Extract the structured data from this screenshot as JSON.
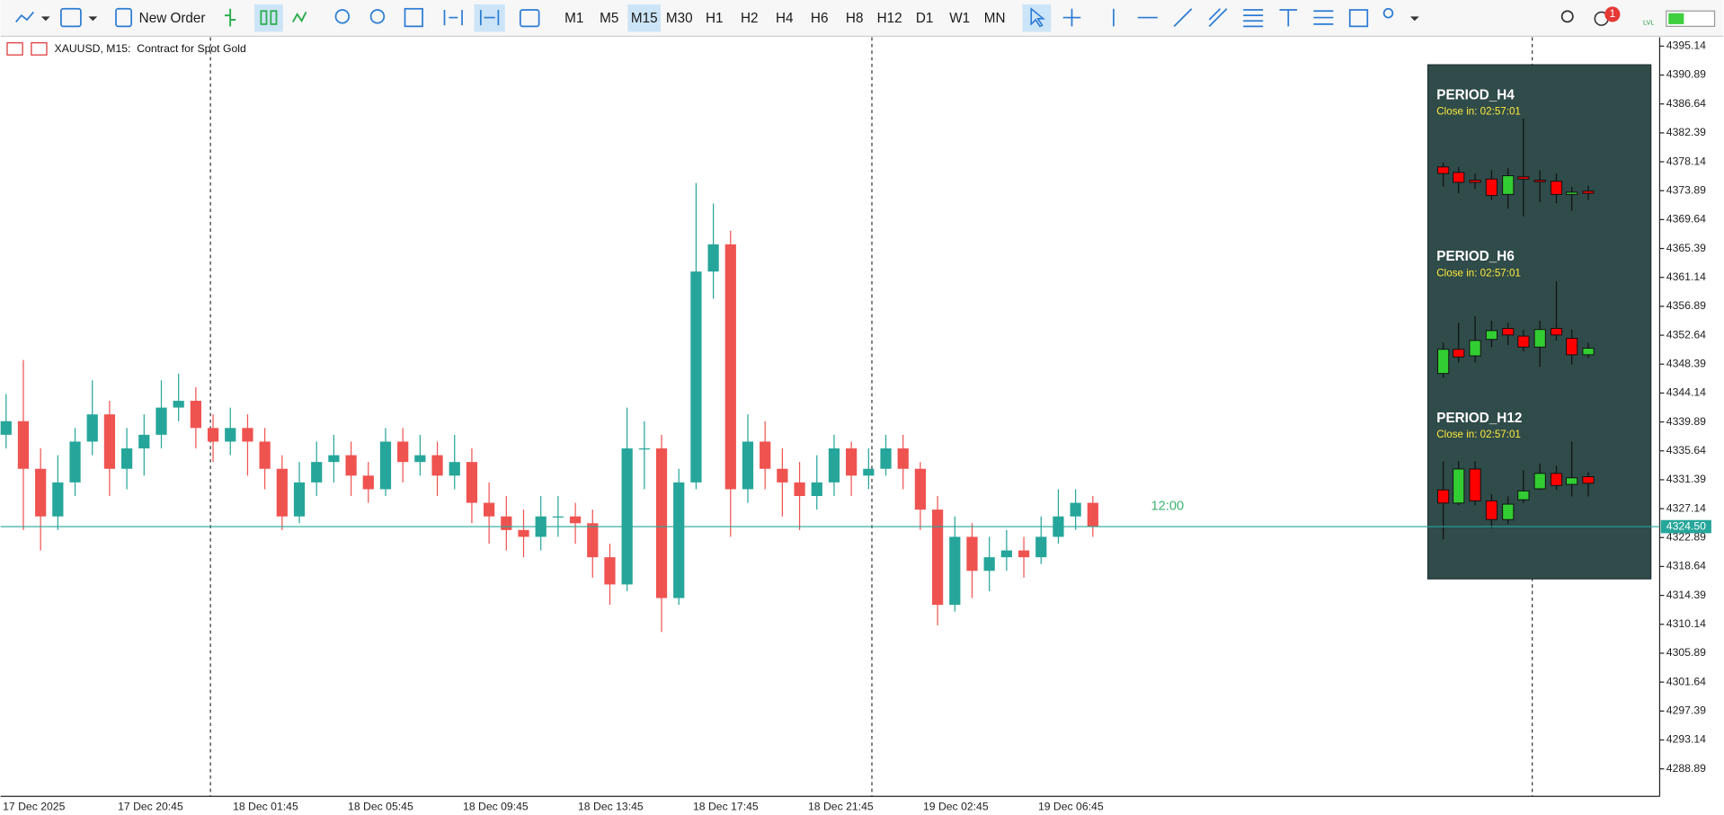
{
  "toolbar": {
    "new_order": "New Order",
    "timeframes": [
      "M1",
      "M5",
      "M15",
      "M30",
      "H1",
      "H2",
      "H4",
      "H6",
      "H8",
      "H12",
      "D1",
      "W1",
      "MN"
    ],
    "active_timeframe": "M15",
    "notifications": "1",
    "lvl": "LVL"
  },
  "chart_data": {
    "type": "candlestick",
    "title": "XAUUSD, M15:  Contract for Spot Gold",
    "x_labels": [
      "17 Dec 2025",
      "17 Dec 20:45",
      "18 Dec 01:45",
      "18 Dec 05:45",
      "18 Dec 09:45",
      "18 Dec 13:45",
      "18 Dec 17:45",
      "18 Dec 21:45",
      "19 Dec 02:45",
      "19 Dec 06:45"
    ],
    "candles": [
      [
        4338,
        4344,
        4336,
        4340
      ],
      [
        4340,
        4349,
        4324,
        4333
      ],
      [
        4333,
        4336,
        4321,
        4326
      ],
      [
        4326,
        4335,
        4324,
        4331
      ],
      [
        4331,
        4339,
        4329,
        4337
      ],
      [
        4337,
        4346,
        4335,
        4341
      ],
      [
        4341,
        4343,
        4329,
        4333
      ],
      [
        4333,
        4339,
        4330,
        4336
      ],
      [
        4336,
        4341,
        4332,
        4338
      ],
      [
        4338,
        4346,
        4336,
        4342
      ],
      [
        4342,
        4347,
        4340,
        4343
      ],
      [
        4343,
        4345,
        4336,
        4339
      ],
      [
        4339,
        4341,
        4334,
        4337
      ],
      [
        4337,
        4342,
        4335,
        4339
      ],
      [
        4339,
        4341,
        4332,
        4337
      ],
      [
        4337,
        4339,
        4330,
        4333
      ],
      [
        4333,
        4335,
        4324,
        4326
      ],
      [
        4326,
        4334,
        4325,
        4331
      ],
      [
        4331,
        4337,
        4329,
        4334
      ],
      [
        4334,
        4338,
        4331,
        4335
      ],
      [
        4335,
        4337,
        4329,
        4332
      ],
      [
        4332,
        4334,
        4328,
        4330
      ],
      [
        4330,
        4339,
        4329,
        4337
      ],
      [
        4337,
        4339,
        4331,
        4334
      ],
      [
        4334,
        4338,
        4332,
        4335
      ],
      [
        4335,
        4337,
        4329,
        4332
      ],
      [
        4332,
        4338,
        4330,
        4334
      ],
      [
        4334,
        4336,
        4325,
        4328
      ],
      [
        4328,
        4331,
        4322,
        4326
      ],
      [
        4326,
        4329,
        4321,
        4324
      ],
      [
        4324,
        4327,
        4320,
        4323
      ],
      [
        4323,
        4329,
        4321,
        4326
      ],
      [
        4326,
        4329,
        4323,
        4326
      ],
      [
        4326,
        4328,
        4322,
        4325
      ],
      [
        4325,
        4327,
        4317,
        4320
      ],
      [
        4320,
        4322,
        4313,
        4316
      ],
      [
        4316,
        4342,
        4315,
        4336
      ],
      [
        4336,
        4340,
        4330,
        4336
      ],
      [
        4336,
        4338,
        4309,
        4314
      ],
      [
        4314,
        4333,
        4313,
        4331
      ],
      [
        4331,
        4375,
        4330,
        4362
      ],
      [
        4362,
        4372,
        4358,
        4366
      ],
      [
        4366,
        4368,
        4323,
        4330
      ],
      [
        4330,
        4341,
        4328,
        4337
      ],
      [
        4337,
        4340,
        4330,
        4333
      ],
      [
        4333,
        4336,
        4326,
        4331
      ],
      [
        4331,
        4334,
        4324,
        4329
      ],
      [
        4329,
        4335,
        4327,
        4331
      ],
      [
        4331,
        4338,
        4329,
        4336
      ],
      [
        4336,
        4337,
        4329,
        4332
      ],
      [
        4332,
        4336,
        4330,
        4333
      ],
      [
        4333,
        4338,
        4332,
        4336
      ],
      [
        4336,
        4338,
        4330,
        4333
      ],
      [
        4333,
        4334,
        4324,
        4327
      ],
      [
        4327,
        4329,
        4310,
        4313
      ],
      [
        4313,
        4326,
        4312,
        4323
      ],
      [
        4323,
        4325,
        4314,
        4318
      ],
      [
        4318,
        4323,
        4315,
        4320
      ],
      [
        4320,
        4324,
        4318,
        4321
      ],
      [
        4321,
        4323,
        4317,
        4320
      ],
      [
        4320,
        4326,
        4319,
        4323
      ],
      [
        4323,
        4330,
        4322,
        4326
      ],
      [
        4326,
        4330,
        4324,
        4328
      ],
      [
        4328,
        4329,
        4323,
        4324.5
      ]
    ],
    "up_color": "#26a69a",
    "down_color": "#ef5350",
    "ylim": [
      4284.85,
      4396.27
    ],
    "yticks": [
      4395.14,
      4390.89,
      4386.64,
      4382.39,
      4378.14,
      4373.89,
      4369.64,
      4365.39,
      4361.14,
      4356.89,
      4352.64,
      4348.39,
      4344.14,
      4339.89,
      4335.64,
      4331.39,
      4327.14,
      4322.89,
      4318.64,
      4314.39,
      4310.14,
      4305.89,
      4301.64,
      4297.39,
      4293.14,
      4288.89
    ],
    "current_price": {
      "value": 4324.5,
      "label": "4324.50"
    },
    "countdown": "12:00"
  },
  "panel": {
    "sections": [
      {
        "title": "PERIOD_H4",
        "countdown": "Close in: 02:57:01"
      },
      {
        "title": "PERIOD_H6",
        "countdown": "Close in: 02:57:01"
      },
      {
        "title": "PERIOD_H12",
        "countdown": "Close in: 02:57:01"
      }
    ]
  }
}
